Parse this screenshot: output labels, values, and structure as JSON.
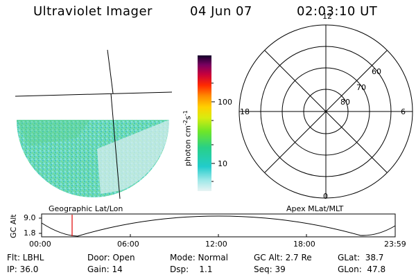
{
  "header": {
    "title": "Ultraviolet Imager",
    "date": "04 Jun 07",
    "time": "02:03:10 UT"
  },
  "colorbar": {
    "ticks": [
      "100",
      "10"
    ],
    "unit_base": "photon cm",
    "unit_exp1": "-2",
    "unit_s": "s",
    "unit_exp2": "-1"
  },
  "polar": {
    "mlt": [
      "12",
      "18",
      "6",
      "0"
    ],
    "mlat": [
      "60",
      "70",
      "80"
    ]
  },
  "labels": {
    "left_coords": "Geographic Lat/Lon",
    "right_coords": "Apex MLat/MLT"
  },
  "timeline": {
    "ylabel": "GC Alt",
    "yticks": [
      "9.0",
      "1.8"
    ],
    "xticks": [
      "00:00",
      "06:00",
      "12:00",
      "18:00",
      "23:59"
    ]
  },
  "info": {
    "filter": "Flt: LBHL",
    "ip": "IP: 36.0",
    "door": "Door: Open",
    "gain": "Gain: 14",
    "mode": "Mode: Normal",
    "dsp": "Dsp:    1.1",
    "gc_alt": "GC Alt: 2.7 Re",
    "seq": "Seq: 39",
    "glat": "GLat:  38.7",
    "glon": "GLon:  47.8"
  },
  "colors": {
    "time_marker": "#e00000"
  }
}
